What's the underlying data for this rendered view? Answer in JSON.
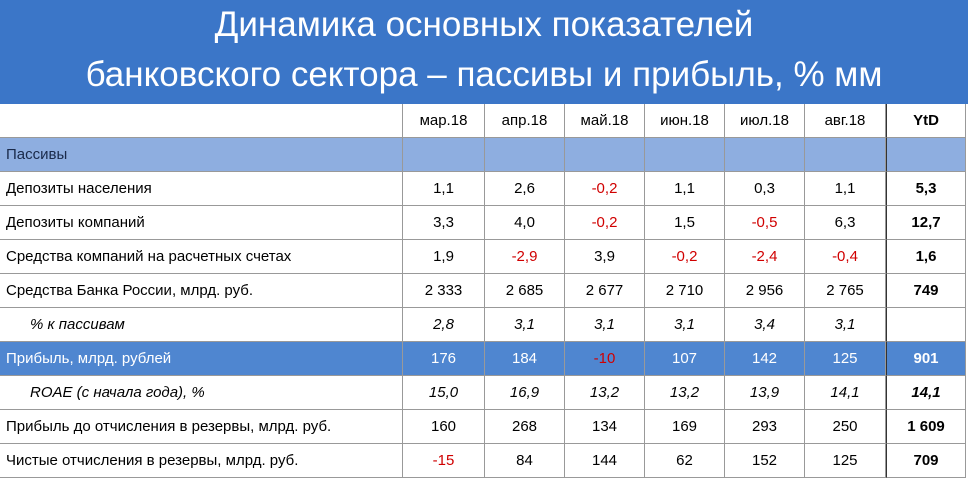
{
  "header": {
    "title_lines": [
      "Динамика основных показателей",
      "банковского сектора – пассивы и прибыль, % мм"
    ]
  },
  "table": {
    "columns": [
      "мар.18",
      "апр.18",
      "май.18",
      "июн.18",
      "июл.18",
      "авг.18",
      "YtD"
    ],
    "rows": [
      {
        "label": "Пассивы",
        "section": true,
        "values": []
      },
      {
        "label": "Депозиты населения",
        "values": [
          "1,1",
          "2,6",
          "-0,2",
          "1,1",
          "0,3",
          "1,1",
          "5,3"
        ]
      },
      {
        "label": "Депозиты компаний",
        "values": [
          "3,3",
          "4,0",
          "-0,2",
          "1,5",
          "-0,5",
          "6,3",
          "12,7"
        ]
      },
      {
        "label": "Средства компаний на расчетных счетах",
        "values": [
          "1,9",
          "-2,9",
          "3,9",
          "-0,2",
          "-2,4",
          "-0,4",
          "1,6"
        ]
      },
      {
        "label": "Средства Банка России, млрд. руб.",
        "values": [
          "2 333",
          "2 685",
          "2 677",
          "2 710",
          "2 956",
          "2 765",
          "749"
        ]
      },
      {
        "label": "% к пассивам",
        "italic": true,
        "values": [
          "2,8",
          "3,1",
          "3,1",
          "3,1",
          "3,4",
          "3,1",
          null
        ]
      },
      {
        "label": "Прибыль, млрд. рублей",
        "highlight": true,
        "values": [
          "176",
          "184",
          "-10",
          "107",
          "142",
          "125",
          "901"
        ]
      },
      {
        "label": "ROAE (с начала года), %",
        "italic": true,
        "values": [
          "15,0",
          "16,9",
          "13,2",
          "13,2",
          "13,9",
          "14,1",
          "14,1"
        ]
      },
      {
        "label": "Прибыль до отчисления в резервы, млрд. руб.",
        "values": [
          "160",
          "268",
          "134",
          "169",
          "293",
          "250",
          "1 609"
        ]
      },
      {
        "label": "Чистые отчисления в резервы, млрд. руб.",
        "values": [
          "-15",
          "84",
          "144",
          "62",
          "152",
          "125",
          "709"
        ]
      }
    ]
  }
}
